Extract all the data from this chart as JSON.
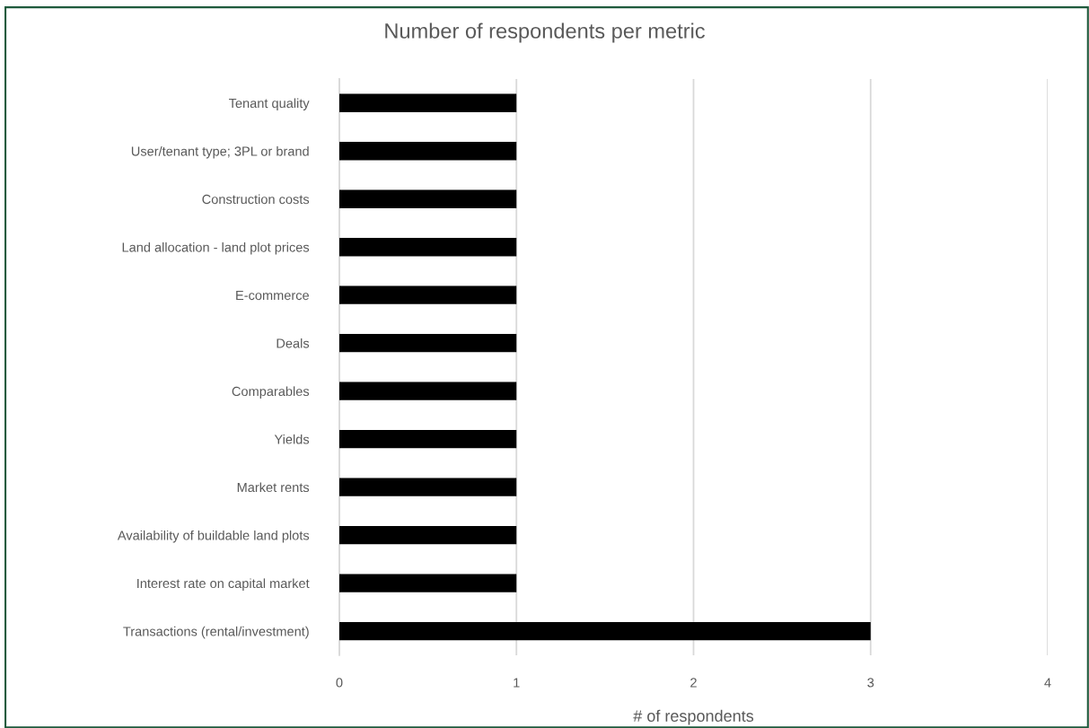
{
  "chart_data": {
    "type": "bar",
    "orientation": "horizontal",
    "title": "Number of respondents per metric",
    "xlabel": "# of respondents",
    "categories": [
      "Tenant quality",
      "User/tenant type; 3PL or brand",
      "Construction costs",
      "Land allocation - land plot prices",
      "E-commerce",
      "Deals",
      "Comparables",
      "Yields",
      "Market rents",
      "Availability of buildable land plots",
      "Interest rate on capital market",
      "Transactions (rental/investment)"
    ],
    "values": [
      1,
      1,
      1,
      1,
      1,
      1,
      1,
      1,
      1,
      1,
      1,
      3
    ],
    "color": "#000000",
    "xlim": [
      0,
      4
    ],
    "xticks": [
      0,
      1,
      2,
      3,
      4
    ],
    "grid": "x"
  }
}
